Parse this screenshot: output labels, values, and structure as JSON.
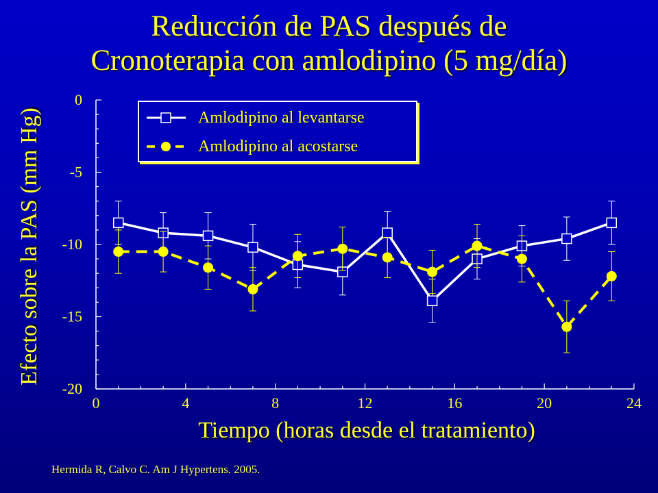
{
  "title": {
    "line1": "Reducción de PAS después de",
    "line2": "Cronoterapia con amlodipino (5 mg/día)"
  },
  "citation": "Hermida R, Calvo C. Am J Hypertens. 2005.",
  "colors": {
    "background": "#0000c8",
    "text": "#ffff33",
    "series_white": "#ffffff",
    "series_yellow": "#ffff00"
  },
  "chart_data": {
    "type": "line",
    "xlabel": "Tiempo (horas desde el tratamiento)",
    "ylabel": "Efecto sobre la PAS (mm Hg)",
    "xlim": [
      0,
      24
    ],
    "ylim": [
      -20,
      0
    ],
    "xticks": [
      0,
      4,
      8,
      12,
      16,
      20,
      24
    ],
    "xtick_labels": [
      "0",
      "4",
      "8",
      "12",
      "16",
      "20",
      "24"
    ],
    "yticks": [
      0,
      -5,
      -10,
      -15,
      -20
    ],
    "ytick_labels": [
      "0",
      "-5",
      "-10",
      "-15",
      "-20"
    ],
    "legend_position": "top-left",
    "series": [
      {
        "name": "Amlodipino al levantarse",
        "marker": "open-square",
        "line": "solid",
        "color": "#ffffff",
        "x": [
          1,
          3,
          5,
          7,
          9,
          11,
          13,
          15,
          17,
          19,
          21,
          23
        ],
        "y": [
          -8.5,
          -9.2,
          -9.4,
          -10.2,
          -11.4,
          -11.9,
          -9.2,
          -13.9,
          -11.0,
          -10.1,
          -9.6,
          -8.5
        ],
        "error": [
          1.5,
          1.4,
          1.6,
          1.6,
          1.6,
          1.6,
          1.5,
          1.5,
          1.4,
          1.4,
          1.5,
          1.5
        ]
      },
      {
        "name": "Amlodipino al acostarse",
        "marker": "filled-circle",
        "line": "dashed",
        "color": "#ffff00",
        "x": [
          1,
          3,
          5,
          7,
          9,
          11,
          13,
          15,
          17,
          19,
          21,
          23
        ],
        "y": [
          -10.5,
          -10.5,
          -11.6,
          -13.1,
          -10.8,
          -10.3,
          -10.9,
          -11.9,
          -10.1,
          -11.0,
          -15.7,
          -12.2
        ],
        "error": [
          1.5,
          1.4,
          1.5,
          1.5,
          1.5,
          1.5,
          1.4,
          1.5,
          1.5,
          1.6,
          1.8,
          1.7
        ]
      }
    ]
  }
}
